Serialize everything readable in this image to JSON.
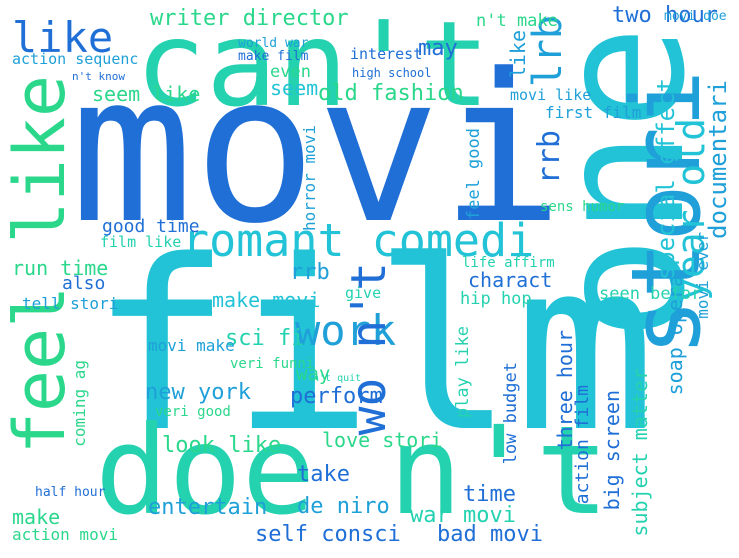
{
  "palette": {
    "a": "#1f6fd6",
    "b": "#1fa0d8",
    "c": "#22c3d6",
    "d": "#24d2b0",
    "e": "#2ad78b"
  },
  "words": [
    {
      "t": "movi",
      "c": "a"
    },
    {
      "t": "film",
      "c": "c"
    },
    {
      "t": "one",
      "c": "c"
    },
    {
      "t": "can't",
      "c": "d"
    },
    {
      "t": "doe n't",
      "c": "d"
    },
    {
      "t": "stori",
      "c": "b"
    },
    {
      "t": "feel like",
      "c": "e"
    },
    {
      "t": "romant comedi",
      "c": "c"
    },
    {
      "t": "work",
      "c": "b"
    },
    {
      "t": "like",
      "c": "a"
    },
    {
      "t": "wo n't",
      "c": "a"
    },
    {
      "t": "year old",
      "c": "c"
    },
    {
      "t": "lrb",
      "c": "b"
    },
    {
      "t": "rrb",
      "c": "a"
    },
    {
      "t": "writer director",
      "c": "e"
    },
    {
      "t": "n't make",
      "c": "e"
    },
    {
      "t": "two hour",
      "c": "a"
    },
    {
      "t": "movi doe",
      "c": "b"
    },
    {
      "t": "may",
      "c": "a"
    },
    {
      "t": "like",
      "c": "b"
    },
    {
      "t": "old fashion",
      "c": "e"
    },
    {
      "t": "seem like",
      "c": "e"
    },
    {
      "t": "seem",
      "c": "c"
    },
    {
      "t": "interest",
      "c": "a"
    },
    {
      "t": "even",
      "c": "e"
    },
    {
      "t": "make film",
      "c": "a"
    },
    {
      "t": "world war",
      "c": "b"
    },
    {
      "t": "action sequenc",
      "c": "b"
    },
    {
      "t": "n't know",
      "c": "a"
    },
    {
      "t": "high school",
      "c": "a"
    },
    {
      "t": "movi like",
      "c": "b"
    },
    {
      "t": "first film",
      "c": "b"
    },
    {
      "t": "special effect",
      "c": "c"
    },
    {
      "t": "documentari",
      "c": "b"
    },
    {
      "t": "good time",
      "c": "a"
    },
    {
      "t": "film like",
      "c": "d"
    },
    {
      "t": "run time",
      "c": "e"
    },
    {
      "t": "also",
      "c": "a"
    },
    {
      "t": "rrb",
      "c": "b"
    },
    {
      "t": "charact",
      "c": "a"
    },
    {
      "t": "tell stori",
      "c": "b"
    },
    {
      "t": "make movi",
      "c": "c"
    },
    {
      "t": "sci fi",
      "c": "d"
    },
    {
      "t": "movi make",
      "c": "b"
    },
    {
      "t": "new york",
      "c": "b"
    },
    {
      "t": "perform",
      "c": "a"
    },
    {
      "t": "way",
      "c": "e"
    },
    {
      "t": "look like",
      "c": "e"
    },
    {
      "t": "love stori",
      "c": "e"
    },
    {
      "t": "take",
      "c": "a"
    },
    {
      "t": "de niro",
      "c": "b"
    },
    {
      "t": "self consci",
      "c": "a"
    },
    {
      "t": "entertain",
      "c": "b"
    },
    {
      "t": "action movi",
      "c": "e"
    },
    {
      "t": "make",
      "c": "e"
    },
    {
      "t": "war movi",
      "c": "d"
    },
    {
      "t": "bad movi",
      "c": "a"
    },
    {
      "t": "time",
      "c": "a"
    },
    {
      "t": "low budget",
      "c": "a"
    },
    {
      "t": "three hour",
      "c": "a"
    },
    {
      "t": "play like",
      "c": "d"
    },
    {
      "t": "big screen",
      "c": "a"
    },
    {
      "t": "action film",
      "c": "a"
    },
    {
      "t": "subject matter",
      "c": "d"
    },
    {
      "t": "soap opera",
      "c": "b"
    },
    {
      "t": "seen befor",
      "c": "d"
    },
    {
      "t": "hip hop",
      "c": "d"
    },
    {
      "t": "life affirm",
      "c": "d"
    },
    {
      "t": "sens humor",
      "c": "e"
    },
    {
      "t": "movi ever",
      "c": "b"
    },
    {
      "t": "give",
      "c": "d"
    },
    {
      "t": "feel good",
      "c": "b"
    },
    {
      "t": "horror movi",
      "c": "b"
    },
    {
      "t": "veri good",
      "c": "e"
    },
    {
      "t": "veri funni",
      "c": "e"
    },
    {
      "t": "coming ag",
      "c": "e"
    },
    {
      "t": "half hour",
      "c": "a"
    },
    {
      "t": "n't quit",
      "c": "d"
    }
  ]
}
